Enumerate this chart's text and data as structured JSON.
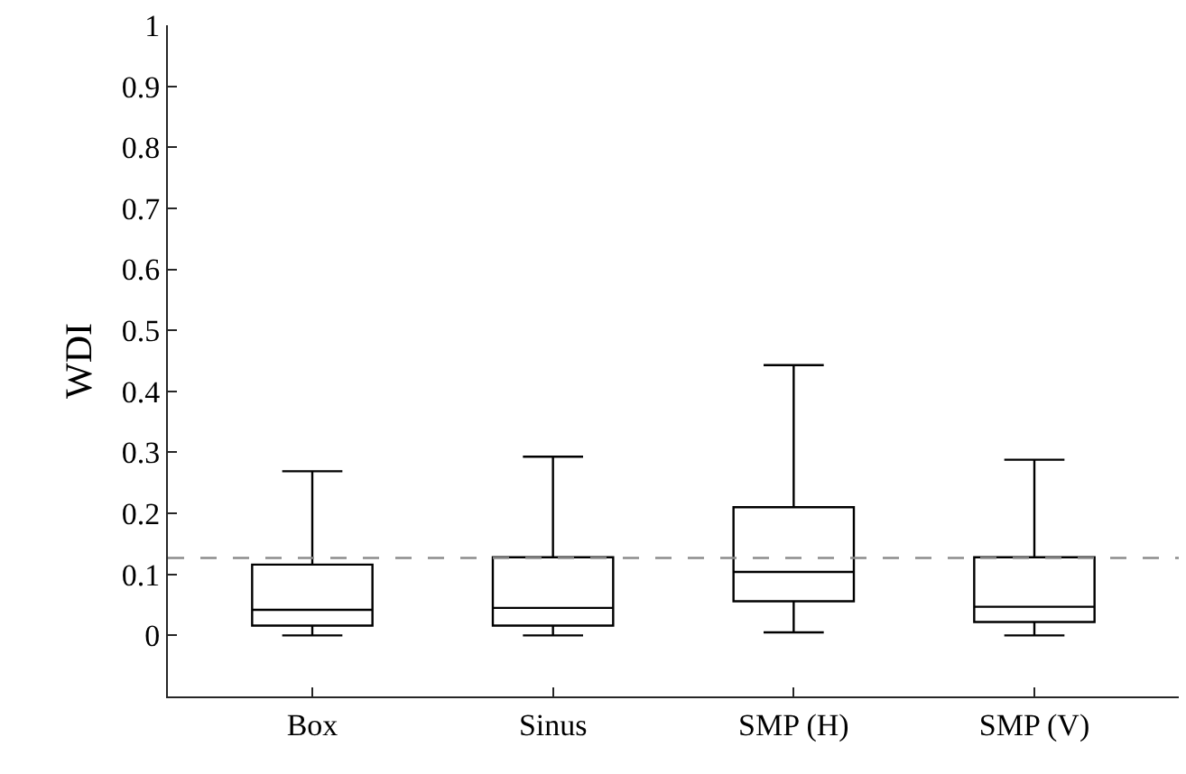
{
  "chart_data": {
    "type": "box",
    "ylabel": "WDI",
    "categories": [
      "Box",
      "Sinus",
      "SMP (H)",
      "SMP (V)"
    ],
    "boxes": [
      {
        "low": 0,
        "q1": 0.016,
        "median": 0.042,
        "q3": 0.116,
        "high": 0.269
      },
      {
        "low": 0,
        "q1": 0.016,
        "median": 0.045,
        "q3": 0.128,
        "high": 0.293
      },
      {
        "low": 0.005,
        "q1": 0.056,
        "median": 0.104,
        "q3": 0.21,
        "high": 0.443
      },
      {
        "low": 0,
        "q1": 0.022,
        "median": 0.047,
        "q3": 0.128,
        "high": 0.288
      }
    ],
    "color": "#000000",
    "ylim": [
      -0.1,
      1
    ],
    "yticks": [
      0,
      0.1,
      0.2,
      0.3,
      0.4,
      0.5,
      0.6,
      0.7,
      0.8,
      0.9,
      1
    ],
    "ref_lines": [
      {
        "axis": "y",
        "value": 0.127,
        "color": "#8c8c8c",
        "line_style": "dashed"
      }
    ],
    "grid": false
  }
}
